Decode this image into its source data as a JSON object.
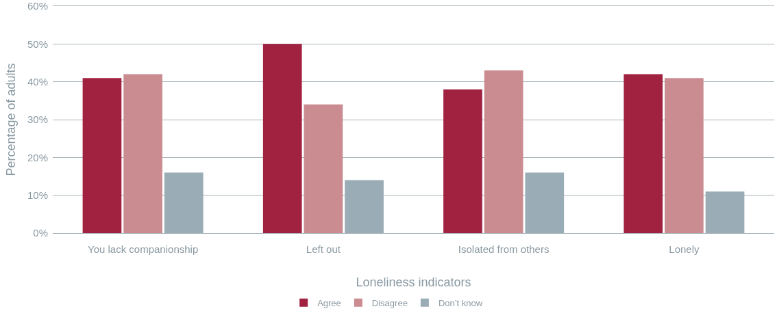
{
  "chart_data": {
    "type": "bar",
    "xlabel": "Loneliness indicators",
    "ylabel": "Percentage of adults",
    "categories": [
      "You lack companionship",
      "Left out",
      "Isolated from others",
      "Lonely"
    ],
    "series": [
      {
        "name": "Agree",
        "color": "#a12140",
        "values": [
          41,
          50,
          38,
          42
        ]
      },
      {
        "name": "Disagree",
        "color": "#cb8c91",
        "values": [
          42,
          34,
          43,
          41
        ]
      },
      {
        "name": "Don’t know",
        "color": "#9aacb5",
        "values": [
          16,
          14,
          16,
          11
        ]
      }
    ],
    "ylim": [
      0,
      60
    ],
    "yticks": [
      {
        "value": 0,
        "label": "0%"
      },
      {
        "value": 10,
        "label": "10%"
      },
      {
        "value": 20,
        "label": "20%"
      },
      {
        "value": 30,
        "label": "30%"
      },
      {
        "value": 40,
        "label": "40%"
      },
      {
        "value": 50,
        "label": "50%"
      },
      {
        "value": 60,
        "label": "60%"
      }
    ],
    "grid": "y",
    "legend": "bottom"
  }
}
